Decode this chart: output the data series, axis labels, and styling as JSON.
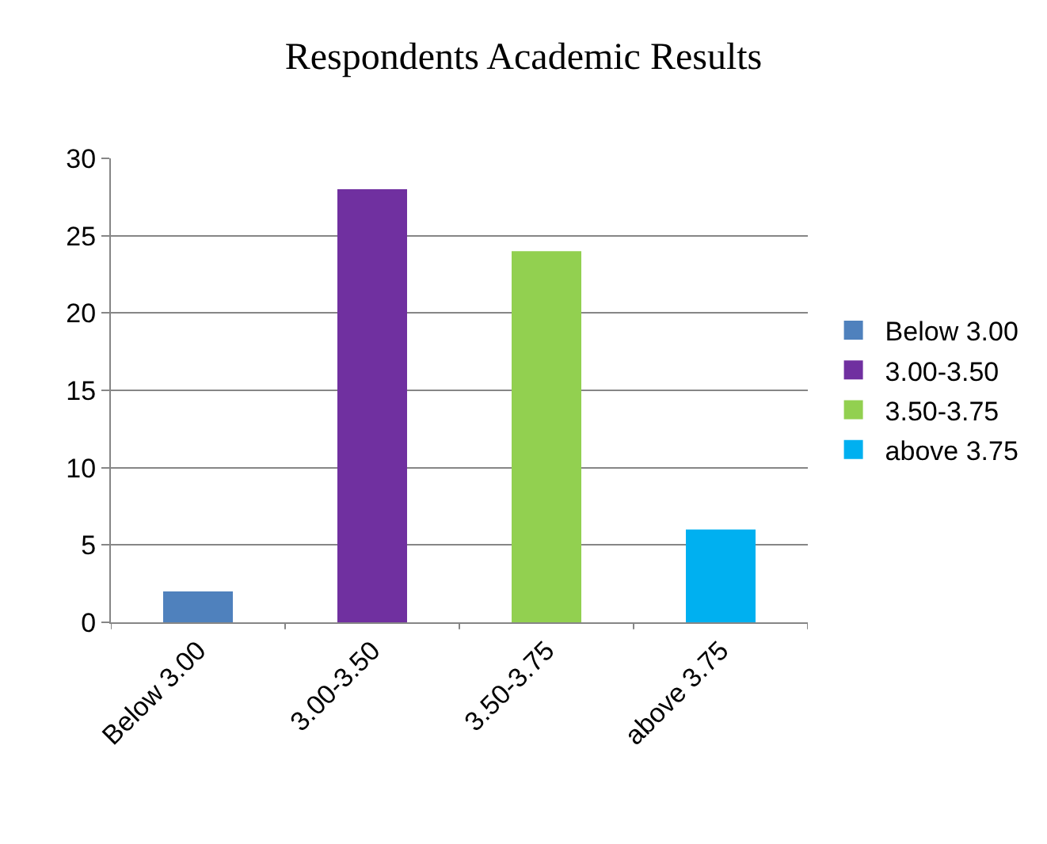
{
  "chart_data": {
    "type": "bar",
    "title": "Respondents Academic Results",
    "categories": [
      "Below 3.00",
      "3.00-3.50",
      "3.50-3.75",
      "above 3.75"
    ],
    "series": [
      {
        "name": "Below 3.00",
        "color": "#4f81bd",
        "values": [
          2,
          null,
          null,
          null
        ]
      },
      {
        "name": "3.00-3.50",
        "color": "#7030a0",
        "values": [
          null,
          28,
          null,
          null
        ]
      },
      {
        "name": "3.50-3.75",
        "color": "#92d050",
        "values": [
          null,
          null,
          24,
          null
        ]
      },
      {
        "name": "above 3.75",
        "color": "#00b0f0",
        "values": [
          null,
          null,
          null,
          6
        ]
      }
    ],
    "ylim": [
      0,
      30
    ],
    "yticks": [
      0,
      5,
      10,
      15,
      20,
      25,
      30
    ],
    "grid": "y",
    "legend": "right"
  }
}
